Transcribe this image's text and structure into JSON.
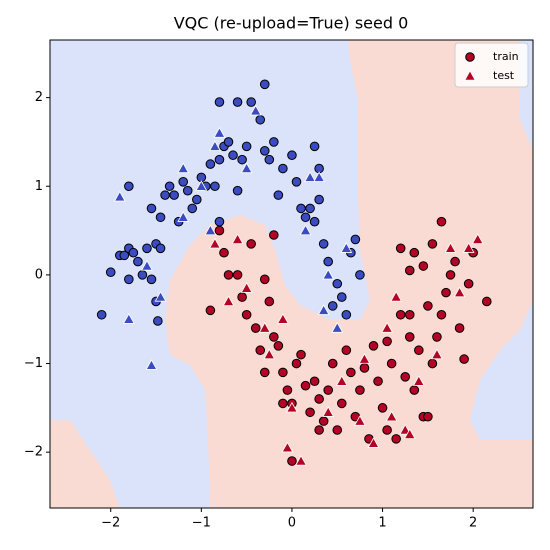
{
  "chart_data": {
    "type": "scatter",
    "title": "VQC (re-upload=True) seed 0",
    "xlim": [
      -2.67,
      2.66
    ],
    "ylim": [
      -2.63,
      2.65
    ],
    "xticks": [
      {
        "value": -2,
        "label": "−2"
      },
      {
        "value": -1,
        "label": "−1"
      },
      0,
      1,
      2
    ],
    "yticks": [
      {
        "value": -2,
        "label": "−2"
      },
      {
        "value": -1,
        "label": "−1"
      },
      0,
      1,
      2
    ],
    "legend": "upper right",
    "class_colors": [
      "#3b4cc0",
      "#b40426"
    ],
    "series": [
      {
        "name": "train",
        "marker": "circle",
        "edge": "#000000",
        "x": [
          -2.1,
          -2.0,
          -1.9,
          -1.85,
          -1.8,
          -1.8,
          -1.75,
          -1.7,
          -1.65,
          -1.6,
          -1.55,
          -1.5,
          -1.45,
          -1.5,
          -1.48,
          -1.55,
          -1.45,
          -1.4,
          -1.35,
          -1.3,
          -1.25,
          -1.2,
          -1.15,
          -1.1,
          -1.05,
          -1.0,
          -0.95,
          -0.9,
          -0.85,
          -0.8,
          -0.75,
          -0.7,
          -0.65,
          -0.6,
          -0.55,
          -0.5,
          -0.45,
          -0.35,
          -0.3,
          -0.25,
          -0.2,
          -0.15,
          -0.1,
          0.0,
          0.05,
          0.1,
          0.15,
          0.2,
          0.25,
          0.25,
          0.3,
          0.3,
          0.35,
          0.4,
          0.45,
          0.5,
          0.55,
          0.6,
          0.65,
          0.7,
          0.75,
          -0.3,
          -0.8,
          -0.6,
          -0.8,
          -1.8,
          -0.9,
          -0.8,
          -0.75,
          -0.7,
          -0.6,
          -0.55,
          -0.5,
          -0.45,
          -0.4,
          -0.35,
          -0.3,
          -0.25,
          -0.2,
          -0.2,
          -0.15,
          -0.1,
          -0.05,
          0.0,
          0.05,
          0.1,
          0.15,
          0.2,
          0.25,
          0.3,
          0.35,
          0.4,
          0.45,
          0.5,
          0.55,
          0.6,
          0.65,
          0.7,
          0.75,
          0.8,
          0.85,
          0.9,
          0.95,
          1.0,
          1.05,
          1.1,
          1.15,
          1.2,
          1.25,
          1.3,
          1.35,
          1.4,
          1.45,
          1.5,
          1.55,
          1.6,
          1.65,
          1.7,
          1.75,
          1.8,
          1.85,
          1.9,
          1.95,
          2.0,
          2.15,
          1.45,
          1.3,
          1.35,
          1.2,
          1.55,
          1.65,
          1.3,
          0.0,
          -0.1,
          -0.3,
          0.3,
          1.5,
          1.05
        ],
        "y": [
          -0.45,
          0.03,
          0.22,
          0.22,
          -0.05,
          0.3,
          0.25,
          0.15,
          0.0,
          0.3,
          -0.05,
          0.35,
          0.3,
          -0.3,
          -0.52,
          0.75,
          0.65,
          0.9,
          1.0,
          0.9,
          0.6,
          1.05,
          0.95,
          0.75,
          0.85,
          1.1,
          1.0,
          1.25,
          1.0,
          1.3,
          1.45,
          1.5,
          1.35,
          0.95,
          1.3,
          1.45,
          1.95,
          1.75,
          1.4,
          1.3,
          1.5,
          0.9,
          1.2,
          1.35,
          1.05,
          0.75,
          0.65,
          0.75,
          0.6,
          1.45,
          1.2,
          0.85,
          0.35,
          0.15,
          -0.35,
          -0.1,
          -0.25,
          -0.45,
          0.25,
          0.4,
          0.0,
          2.15,
          1.95,
          1.95,
          0.6,
          1.0,
          -0.4,
          0.5,
          0.25,
          0.0,
          0.0,
          -0.25,
          -0.45,
          0.35,
          -0.6,
          -0.85,
          -0.05,
          -0.3,
          0.45,
          -0.7,
          -0.8,
          -1.1,
          -1.3,
          -1.45,
          -1.0,
          -0.9,
          -1.25,
          -1.55,
          -1.2,
          -1.4,
          -1.65,
          -1.3,
          -1.0,
          -1.75,
          -1.45,
          -0.85,
          -1.1,
          -1.6,
          -1.3,
          -1.05,
          -1.85,
          -0.8,
          -1.2,
          -1.5,
          -0.75,
          -1.0,
          -1.85,
          -0.45,
          -1.15,
          -0.7,
          -1.3,
          -0.85,
          -1.6,
          -0.35,
          -1.0,
          -0.7,
          -0.45,
          -0.2,
          0.0,
          0.15,
          -0.6,
          -0.95,
          -0.1,
          0.25,
          -0.3,
          0.1,
          0.05,
          0.25,
          0.3,
          0.35,
          0.6,
          -0.45,
          -2.1,
          -1.45,
          -1.1,
          -1.75,
          -1.6,
          -1.75
        ],
        "class": [
          0,
          0,
          0,
          0,
          0,
          0,
          0,
          0,
          0,
          0,
          0,
          0,
          0,
          0,
          0,
          0,
          0,
          0,
          0,
          0,
          0,
          0,
          0,
          0,
          0,
          0,
          0,
          0,
          0,
          0,
          0,
          0,
          0,
          0,
          0,
          0,
          0,
          0,
          0,
          0,
          0,
          0,
          0,
          0,
          0,
          0,
          0,
          0,
          0,
          0,
          0,
          0,
          0,
          0,
          0,
          0,
          0,
          0,
          0,
          0,
          0,
          0,
          0,
          0,
          0,
          0,
          1,
          1,
          1,
          1,
          1,
          1,
          1,
          1,
          1,
          1,
          1,
          1,
          1,
          1,
          1,
          1,
          1,
          1,
          1,
          1,
          1,
          1,
          1,
          1,
          1,
          1,
          1,
          1,
          1,
          1,
          1,
          1,
          1,
          1,
          1,
          1,
          1,
          1,
          1,
          1,
          1,
          1,
          1,
          1,
          1,
          1,
          1,
          1,
          1,
          1,
          1,
          1,
          1,
          1,
          1,
          1,
          1,
          1,
          1,
          1,
          1,
          1,
          1,
          1,
          1,
          1,
          1,
          1,
          1,
          1,
          1,
          1
        ]
      },
      {
        "name": "test",
        "marker": "triangle",
        "edge": "#ffffff",
        "x": [
          -1.9,
          -1.8,
          -1.55,
          -1.6,
          -1.45,
          -1.2,
          -1.0,
          -0.85,
          -0.8,
          -0.4,
          -0.5,
          0.2,
          0.3,
          0.15,
          0.35,
          0.5,
          0.6,
          -1.2,
          -0.9,
          0.4,
          -0.85,
          -0.7,
          -0.6,
          -0.5,
          -0.3,
          -0.25,
          -0.1,
          0.0,
          -0.05,
          0.1,
          0.4,
          0.55,
          0.75,
          0.9,
          1.1,
          1.25,
          1.3,
          1.4,
          1.6,
          1.75,
          1.85,
          2.05,
          1.95,
          1.15,
          1.05,
          0.8
        ],
        "y": [
          0.88,
          -0.5,
          -1.02,
          0.1,
          -0.25,
          1.2,
          1.0,
          1.45,
          1.6,
          1.85,
          1.2,
          1.1,
          1.1,
          0.5,
          -0.4,
          -0.6,
          0.3,
          0.65,
          0.5,
          0.0,
          0.35,
          -0.3,
          0.4,
          -0.15,
          -0.6,
          -0.9,
          -0.5,
          -1.5,
          -1.95,
          -2.1,
          -1.55,
          -1.2,
          -1.65,
          -1.9,
          -1.6,
          -1.75,
          -1.8,
          -1.2,
          -0.9,
          0.3,
          -0.2,
          0.4,
          0.3,
          -0.25,
          -0.6,
          -0.95
        ],
        "class": [
          0,
          0,
          0,
          0,
          0,
          0,
          0,
          0,
          0,
          0,
          0,
          0,
          0,
          0,
          0,
          0,
          0,
          0,
          0,
          0,
          1,
          1,
          1,
          1,
          1,
          1,
          1,
          1,
          1,
          1,
          1,
          1,
          1,
          1,
          1,
          1,
          1,
          1,
          1,
          1,
          1,
          1,
          1,
          1,
          1,
          1
        ]
      }
    ]
  }
}
